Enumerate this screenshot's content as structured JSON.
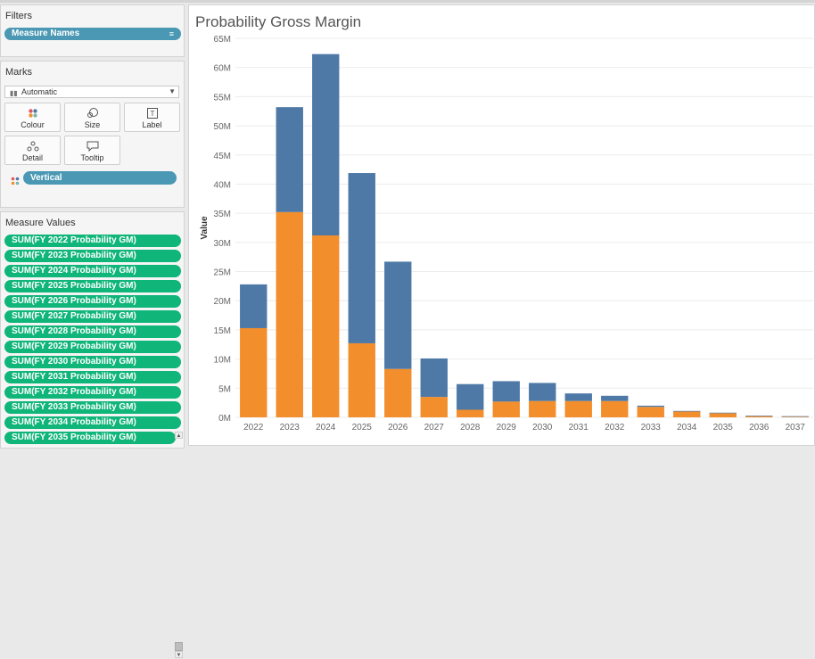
{
  "filters": {
    "title": "Filters",
    "pill_label": "Measure Names"
  },
  "marks": {
    "title": "Marks",
    "mark_type": "Automatic",
    "buttons": [
      {
        "label": "Colour",
        "icon": "colour-icon"
      },
      {
        "label": "Size",
        "icon": "size-icon"
      },
      {
        "label": "Label",
        "icon": "label-icon"
      },
      {
        "label": "Detail",
        "icon": "detail-icon"
      },
      {
        "label": "Tooltip",
        "icon": "tooltip-icon"
      }
    ],
    "colour_pill": "Vertical"
  },
  "measure_values": {
    "title": "Measure Values",
    "items": [
      "SUM(FY 2022 Probability GM)",
      "SUM(FY 2023 Probability GM)",
      "SUM(FY 2024 Probability GM)",
      "SUM(FY 2025 Probability GM)",
      "SUM(FY 2026 Probability GM)",
      "SUM(FY 2027 Probability GM)",
      "SUM(FY 2028 Probability GM)",
      "SUM(FY 2029 Probability GM)",
      "SUM(FY 2030 Probability GM)",
      "SUM(FY 2031 Probability GM)",
      "SUM(FY 2032 Probability GM)",
      "SUM(FY 2033 Probability GM)",
      "SUM(FY 2034 Probability GM)",
      "SUM(FY 2035 Probability GM)"
    ]
  },
  "colors": {
    "series_orange": "#f28e2b",
    "series_blue": "#4e79a7",
    "pill_blue": "#4a98b3",
    "pill_green": "#10b57a"
  },
  "chart_data": {
    "type": "bar",
    "stacked": true,
    "title": "Probability Gross Margin",
    "xlabel": "",
    "ylabel": "Value",
    "ylim": [
      0,
      65
    ],
    "yticks": [
      0,
      5,
      10,
      15,
      20,
      25,
      30,
      35,
      40,
      45,
      50,
      55,
      60,
      65
    ],
    "ytick_labels": [
      "0M",
      "5M",
      "10M",
      "15M",
      "20M",
      "25M",
      "30M",
      "35M",
      "40M",
      "45M",
      "50M",
      "55M",
      "60M",
      "65M"
    ],
    "categories": [
      "2022",
      "2023",
      "2024",
      "2025",
      "2026",
      "2027",
      "2028",
      "2029",
      "2030",
      "2031",
      "2032",
      "2033",
      "2034",
      "2035",
      "2036",
      "2037"
    ],
    "series": [
      {
        "values": [
          15.3,
          35.2,
          31.2,
          12.7,
          8.3,
          3.5,
          1.3,
          2.7,
          2.8,
          2.8,
          2.8,
          1.8,
          1.0,
          0.7,
          0.2,
          0.1
        ],
        "color": "#f28e2b"
      },
      {
        "values": [
          7.5,
          18.0,
          31.1,
          29.2,
          18.4,
          6.6,
          4.4,
          3.5,
          3.1,
          1.3,
          0.9,
          0.2,
          0.1,
          0.1,
          0.1,
          0.1
        ],
        "color": "#4e79a7"
      }
    ],
    "grid": "horizontal",
    "legend": "none"
  }
}
